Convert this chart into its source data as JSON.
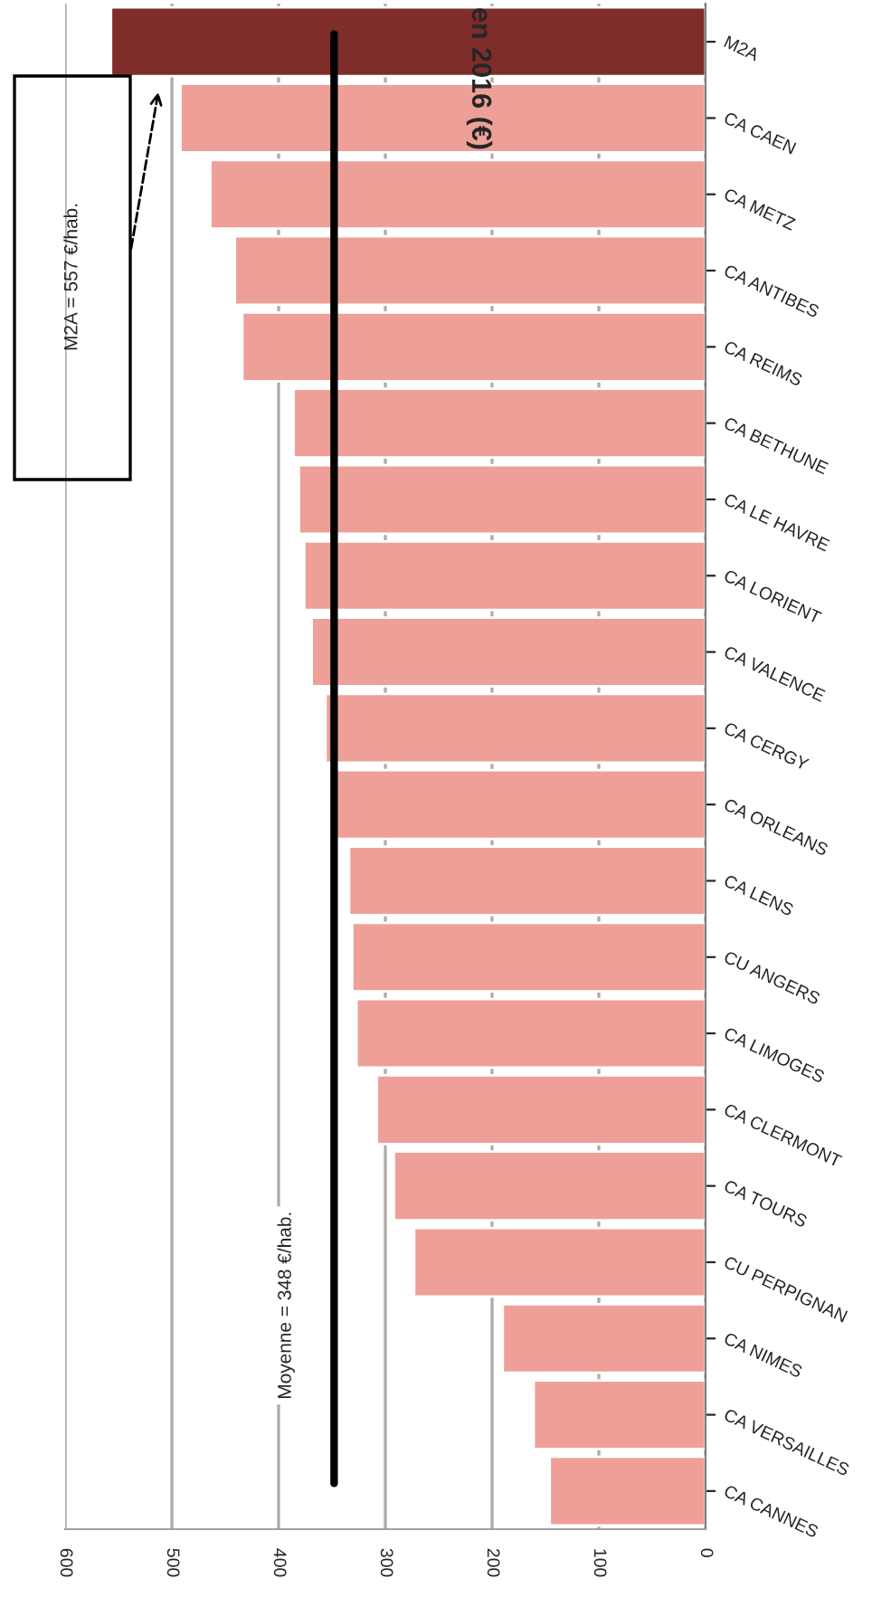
{
  "chart_data": {
    "type": "bar",
    "orientation": "horizontal",
    "title": "en 2016 (€)",
    "categories": [
      "M2A",
      "CA CAEN",
      "CA METZ",
      "CA ANTIBES",
      "CA REIMS",
      "CA BETHUNE",
      "CA LE HAVRE",
      "CA LORIENT",
      "CA VALENCE",
      "CA CERGY",
      "CA ORLEANS",
      "CA LENS",
      "CU ANGERS",
      "CA LIMOGES",
      "CA CLERMONT",
      "CA TOURS",
      "CU PERPIGNAN",
      "CA NIMES",
      "CA VERSAILLES",
      "CA CANNES"
    ],
    "values": [
      557,
      492,
      464,
      441,
      434,
      386,
      381,
      376,
      369,
      356,
      346,
      334,
      331,
      327,
      308,
      292,
      273,
      190,
      161,
      146
    ],
    "colors": [
      "#7f2d2a",
      "#eea098",
      "#eea098",
      "#eea098",
      "#eea098",
      "#eea098",
      "#eea098",
      "#eea098",
      "#eea098",
      "#eea098",
      "#eea098",
      "#eea098",
      "#eea098",
      "#eea098",
      "#eea098",
      "#eea098",
      "#eea098",
      "#eea098",
      "#eea098",
      "#eea098"
    ],
    "xlim": [
      600,
      0
    ],
    "xticks": [
      0,
      100,
      200,
      300,
      400,
      500,
      600
    ],
    "grid": "x",
    "ref_lines": [
      {
        "axis": "x",
        "value": 348,
        "label": "Moyenne = 348 €/hab.",
        "color": "#000000"
      }
    ],
    "annotations": [
      "M2A = 557 €/hab."
    ]
  }
}
